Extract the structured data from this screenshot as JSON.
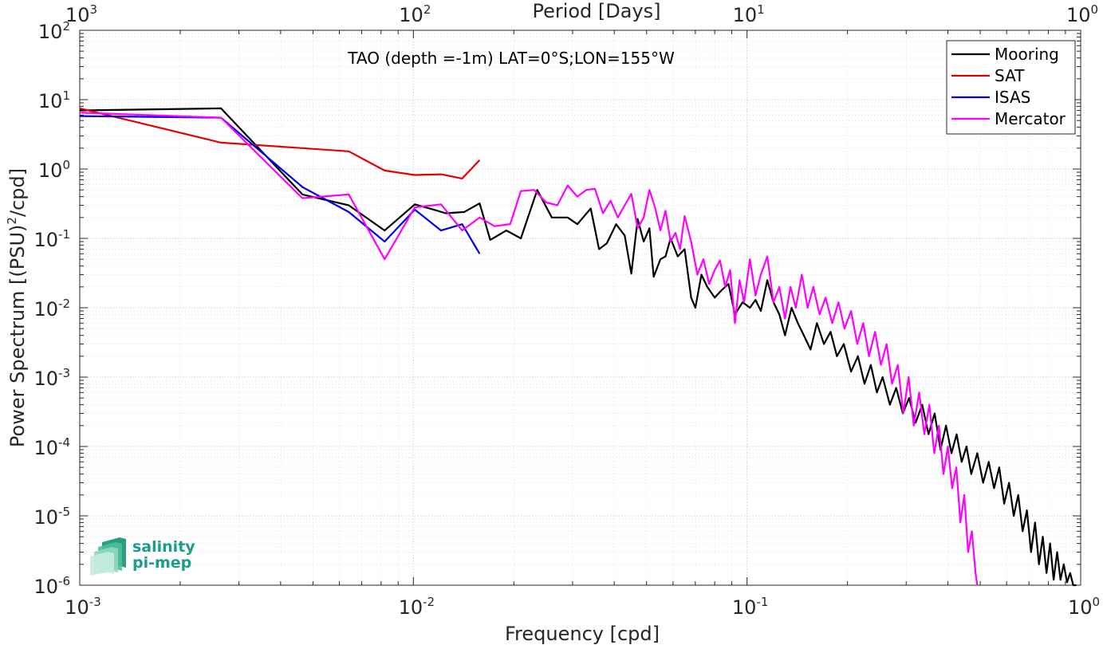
{
  "chart_data": {
    "type": "line",
    "title": "TAO (depth =-1m) LAT=0°S;LON=155°W",
    "xlabel": "Frequency [cpd]",
    "ylabel_main": "Power Spectrum [(PSU)",
    "ylabel_sup": "2",
    "ylabel_tail": "/cpd]",
    "top_xlabel": "Period [Days]",
    "xscale": "log",
    "yscale": "log",
    "xlim": [
      0.001,
      1
    ],
    "ylim": [
      1e-06,
      100
    ],
    "grid": true,
    "legend_position": "top-right",
    "x_ticks": [
      {
        "value": 0.001,
        "base": "10",
        "exp": "-3"
      },
      {
        "value": 0.01,
        "base": "10",
        "exp": "-2"
      },
      {
        "value": 0.1,
        "base": "10",
        "exp": "-1"
      },
      {
        "value": 1,
        "base": "10",
        "exp": "0"
      }
    ],
    "top_x_ticks": [
      {
        "period": 1000,
        "base": "10",
        "exp": "3"
      },
      {
        "period": 100,
        "base": "10",
        "exp": "2"
      },
      {
        "period": 10,
        "base": "10",
        "exp": "1"
      },
      {
        "period": 1,
        "base": "10",
        "exp": "0"
      }
    ],
    "y_ticks": [
      {
        "value": 100,
        "base": "10",
        "exp": "2"
      },
      {
        "value": 10,
        "base": "10",
        "exp": "1"
      },
      {
        "value": 1,
        "base": "10",
        "exp": "0"
      },
      {
        "value": 0.1,
        "base": "10",
        "exp": "-1"
      },
      {
        "value": 0.01,
        "base": "10",
        "exp": "-2"
      },
      {
        "value": 0.001,
        "base": "10",
        "exp": "-3"
      },
      {
        "value": 0.0001,
        "base": "10",
        "exp": "-4"
      },
      {
        "value": 1e-05,
        "base": "10",
        "exp": "-5"
      },
      {
        "value": 1e-06,
        "base": "10",
        "exp": "-6"
      }
    ],
    "series": [
      {
        "name": "Mooring",
        "color": "#000000",
        "points": [
          [
            0.001,
            7.0
          ],
          [
            0.00265,
            7.5
          ],
          [
            0.00465,
            0.43
          ],
          [
            0.0064,
            0.3
          ],
          [
            0.0082,
            0.13
          ],
          [
            0.0101,
            0.31
          ],
          [
            0.0115,
            0.26
          ],
          [
            0.0125,
            0.23
          ],
          [
            0.0142,
            0.24
          ],
          [
            0.0158,
            0.32
          ],
          [
            0.017,
            0.095
          ],
          [
            0.019,
            0.13
          ],
          [
            0.021,
            0.1
          ],
          [
            0.0235,
            0.5
          ],
          [
            0.026,
            0.2
          ],
          [
            0.029,
            0.2
          ],
          [
            0.031,
            0.16
          ],
          [
            0.034,
            0.27
          ],
          [
            0.036,
            0.07
          ],
          [
            0.038,
            0.085
          ],
          [
            0.0405,
            0.16
          ],
          [
            0.043,
            0.11
          ],
          [
            0.045,
            0.031
          ],
          [
            0.047,
            0.19
          ],
          [
            0.049,
            0.09
          ],
          [
            0.051,
            0.14
          ],
          [
            0.0525,
            0.028
          ],
          [
            0.055,
            0.05
          ],
          [
            0.057,
            0.055
          ],
          [
            0.059,
            0.1
          ],
          [
            0.062,
            0.055
          ],
          [
            0.065,
            0.07
          ],
          [
            0.068,
            0.014
          ],
          [
            0.07,
            0.01
          ],
          [
            0.073,
            0.03
          ],
          [
            0.076,
            0.02
          ],
          [
            0.08,
            0.014
          ],
          [
            0.084,
            0.018
          ],
          [
            0.088,
            0.022
          ],
          [
            0.092,
            0.008
          ],
          [
            0.097,
            0.012
          ],
          [
            0.102,
            0.01
          ],
          [
            0.106,
            0.013
          ],
          [
            0.11,
            0.009
          ],
          [
            0.115,
            0.025
          ],
          [
            0.12,
            0.012
          ],
          [
            0.125,
            0.008
          ],
          [
            0.13,
            0.004
          ],
          [
            0.136,
            0.01
          ],
          [
            0.142,
            0.006
          ],
          [
            0.148,
            0.004
          ],
          [
            0.155,
            0.0025
          ],
          [
            0.162,
            0.006
          ],
          [
            0.17,
            0.003
          ],
          [
            0.178,
            0.0045
          ],
          [
            0.186,
            0.002
          ],
          [
            0.195,
            0.003
          ],
          [
            0.205,
            0.0012
          ],
          [
            0.215,
            0.002
          ],
          [
            0.225,
            0.0008
          ],
          [
            0.235,
            0.0015
          ],
          [
            0.245,
            0.0006
          ],
          [
            0.255,
            0.001
          ],
          [
            0.268,
            0.0004
          ],
          [
            0.28,
            0.0007
          ],
          [
            0.293,
            0.0003
          ],
          [
            0.306,
            0.0005
          ],
          [
            0.32,
            0.00022
          ],
          [
            0.335,
            0.0004
          ],
          [
            0.35,
            0.00015
          ],
          [
            0.365,
            0.0003
          ],
          [
            0.38,
            9e-05
          ],
          [
            0.395,
            0.0002
          ],
          [
            0.41,
            8e-05
          ],
          [
            0.425,
            0.00015
          ],
          [
            0.44,
            6e-05
          ],
          [
            0.455,
            0.0001
          ],
          [
            0.47,
            4e-05
          ],
          [
            0.49,
            8e-05
          ],
          [
            0.51,
            3e-05
          ],
          [
            0.53,
            6e-05
          ],
          [
            0.55,
            2.5e-05
          ],
          [
            0.57,
            5e-05
          ],
          [
            0.59,
            1.5e-05
          ],
          [
            0.61,
            3e-05
          ],
          [
            0.63,
            1e-05
          ],
          [
            0.65,
            2e-05
          ],
          [
            0.67,
            6e-06
          ],
          [
            0.69,
            1.2e-05
          ],
          [
            0.71,
            3e-06
          ],
          [
            0.73,
            8e-06
          ],
          [
            0.75,
            2e-06
          ],
          [
            0.77,
            5e-06
          ],
          [
            0.79,
            1.5e-06
          ],
          [
            0.81,
            4e-06
          ],
          [
            0.83,
            1.2e-06
          ],
          [
            0.85,
            3e-06
          ],
          [
            0.87,
            1.2e-06
          ],
          [
            0.89,
            2e-06
          ],
          [
            0.91,
            1.1e-06
          ],
          [
            0.93,
            1.5e-06
          ],
          [
            0.95,
            1e-06
          ],
          [
            0.97,
            1e-06
          ]
        ]
      },
      {
        "name": "SAT",
        "color": "#e50000",
        "points": [
          [
            0.001,
            7.5
          ],
          [
            0.00265,
            2.4
          ],
          [
            0.00465,
            2.0
          ],
          [
            0.0064,
            1.8
          ],
          [
            0.0082,
            0.95
          ],
          [
            0.0101,
            0.82
          ],
          [
            0.0121,
            0.84
          ],
          [
            0.014,
            0.73
          ],
          [
            0.0158,
            1.35
          ]
        ]
      },
      {
        "name": "ISAS",
        "color": "#0000e6",
        "points": [
          [
            0.001,
            5.8
          ],
          [
            0.00265,
            5.5
          ],
          [
            0.00465,
            0.55
          ],
          [
            0.0064,
            0.24
          ],
          [
            0.0082,
            0.09
          ],
          [
            0.0101,
            0.26
          ],
          [
            0.0121,
            0.13
          ],
          [
            0.014,
            0.16
          ],
          [
            0.0158,
            0.06
          ]
        ]
      },
      {
        "name": "Mercator",
        "color": "#ff00ff",
        "points": [
          [
            0.001,
            6.5
          ],
          [
            0.00265,
            5.5
          ],
          [
            0.00465,
            0.38
          ],
          [
            0.0064,
            0.43
          ],
          [
            0.0082,
            0.05
          ],
          [
            0.0101,
            0.28
          ],
          [
            0.0121,
            0.31
          ],
          [
            0.014,
            0.13
          ],
          [
            0.0158,
            0.2
          ],
          [
            0.0175,
            0.15
          ],
          [
            0.0195,
            0.16
          ],
          [
            0.021,
            0.48
          ],
          [
            0.023,
            0.5
          ],
          [
            0.025,
            0.33
          ],
          [
            0.027,
            0.3
          ],
          [
            0.029,
            0.58
          ],
          [
            0.031,
            0.4
          ],
          [
            0.033,
            0.5
          ],
          [
            0.035,
            0.52
          ],
          [
            0.037,
            0.23
          ],
          [
            0.039,
            0.35
          ],
          [
            0.041,
            0.2
          ],
          [
            0.043,
            0.3
          ],
          [
            0.045,
            0.44
          ],
          [
            0.047,
            0.14
          ],
          [
            0.049,
            0.2
          ],
          [
            0.051,
            0.5
          ],
          [
            0.053,
            0.28
          ],
          [
            0.055,
            0.13
          ],
          [
            0.057,
            0.25
          ],
          [
            0.059,
            0.09
          ],
          [
            0.061,
            0.12
          ],
          [
            0.063,
            0.07
          ],
          [
            0.065,
            0.21
          ],
          [
            0.068,
            0.09
          ],
          [
            0.071,
            0.03
          ],
          [
            0.074,
            0.05
          ],
          [
            0.077,
            0.022
          ],
          [
            0.08,
            0.035
          ],
          [
            0.083,
            0.048
          ],
          [
            0.086,
            0.02
          ],
          [
            0.089,
            0.035
          ],
          [
            0.092,
            0.006
          ],
          [
            0.095,
            0.025
          ],
          [
            0.098,
            0.012
          ],
          [
            0.102,
            0.05
          ],
          [
            0.106,
            0.015
          ],
          [
            0.11,
            0.03
          ],
          [
            0.115,
            0.055
          ],
          [
            0.12,
            0.012
          ],
          [
            0.125,
            0.02
          ],
          [
            0.13,
            0.007
          ],
          [
            0.135,
            0.02
          ],
          [
            0.14,
            0.01
          ],
          [
            0.146,
            0.03
          ],
          [
            0.152,
            0.01
          ],
          [
            0.158,
            0.02
          ],
          [
            0.165,
            0.008
          ],
          [
            0.172,
            0.014
          ],
          [
            0.18,
            0.006
          ],
          [
            0.188,
            0.012
          ],
          [
            0.196,
            0.005
          ],
          [
            0.205,
            0.009
          ],
          [
            0.214,
            0.003
          ],
          [
            0.223,
            0.006
          ],
          [
            0.232,
            0.002
          ],
          [
            0.242,
            0.0045
          ],
          [
            0.252,
            0.0015
          ],
          [
            0.262,
            0.003
          ],
          [
            0.272,
            0.0008
          ],
          [
            0.283,
            0.0015
          ],
          [
            0.294,
            0.0003
          ],
          [
            0.305,
            0.001
          ],
          [
            0.316,
            0.0002
          ],
          [
            0.328,
            0.0006
          ],
          [
            0.34,
            0.00015
          ],
          [
            0.352,
            0.0004
          ],
          [
            0.364,
            8e-05
          ],
          [
            0.376,
            0.0002
          ],
          [
            0.388,
            4e-05
          ],
          [
            0.4,
            0.0001
          ],
          [
            0.412,
            2.5e-05
          ],
          [
            0.424,
            5e-05
          ],
          [
            0.436,
            8e-06
          ],
          [
            0.448,
            2e-05
          ],
          [
            0.46,
            3e-06
          ],
          [
            0.472,
            6e-06
          ],
          [
            0.484,
            1.5e-06
          ],
          [
            0.49,
            1e-06
          ]
        ]
      }
    ]
  },
  "logo": {
    "line1": "salinity",
    "line2": "pi-mep",
    "color": "#1a9e8a"
  }
}
